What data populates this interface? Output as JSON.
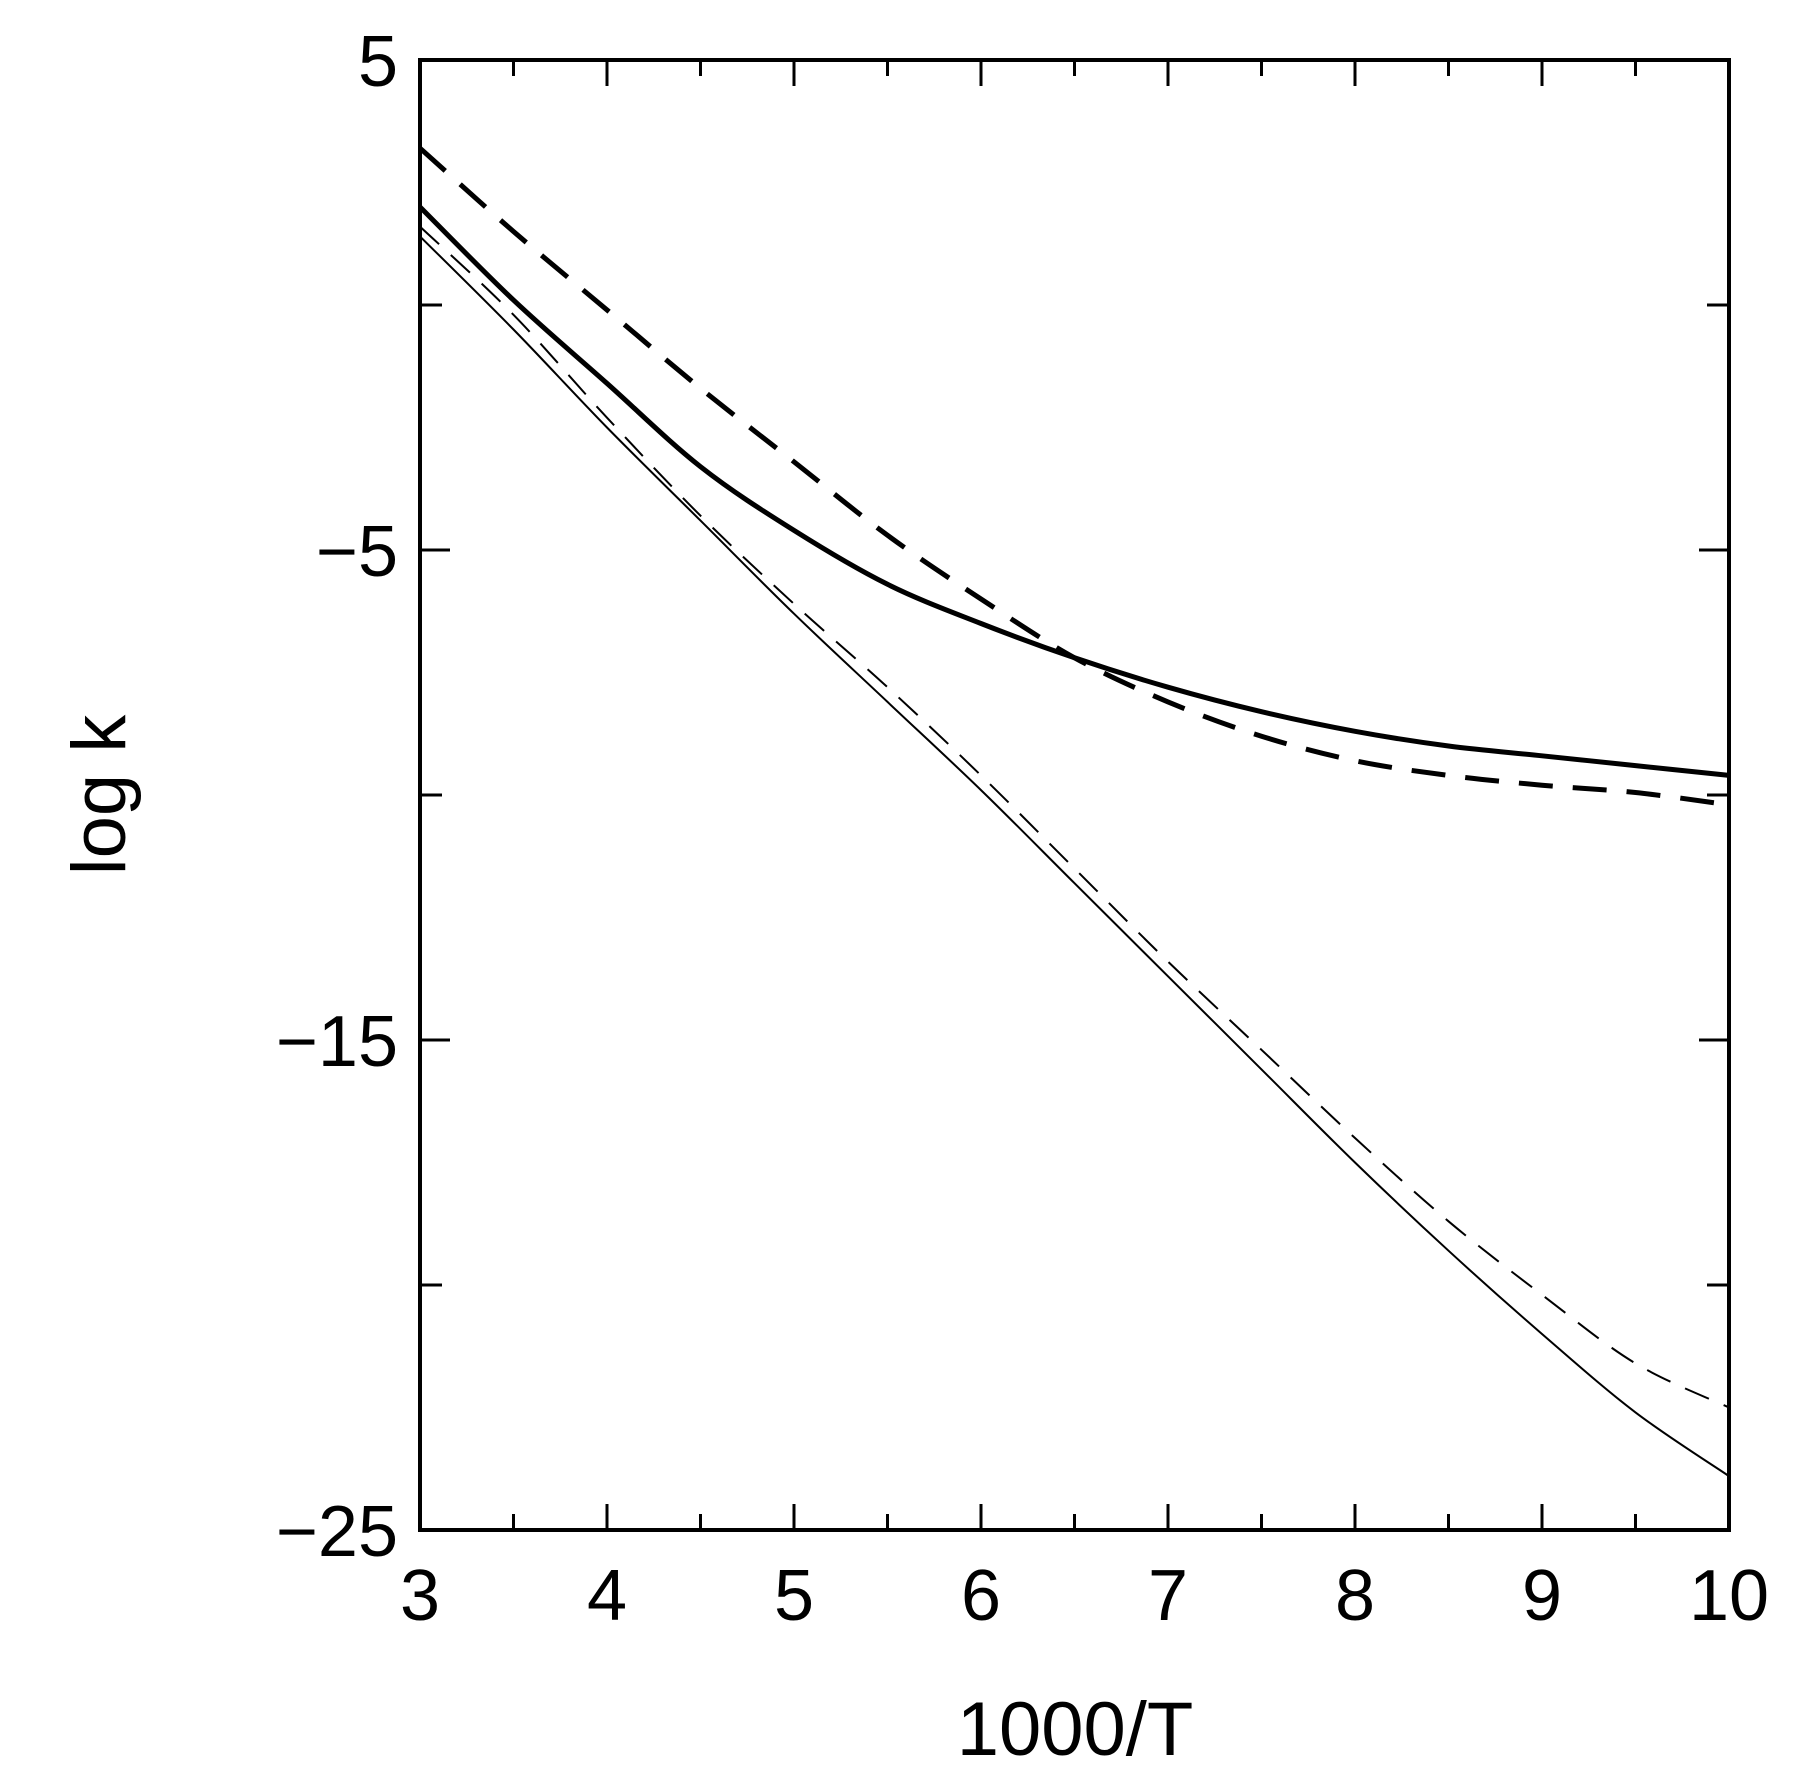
{
  "chart_data": {
    "type": "line",
    "title": "",
    "xlabel": "1000/T",
    "ylabel": "log k",
    "xlim": [
      3,
      10
    ],
    "ylim": [
      -25,
      5
    ],
    "x_ticks": [
      3,
      4,
      5,
      6,
      7,
      8,
      9,
      10
    ],
    "x_tick_labels": [
      "3",
      "4",
      "5",
      "6",
      "7",
      "8",
      "9",
      "10"
    ],
    "y_ticks": [
      5,
      -5,
      -15,
      -25
    ],
    "y_tick_labels": [
      "5",
      "−5",
      "−15",
      "−25"
    ],
    "grid": false,
    "legend": "none",
    "series": [
      {
        "style": "thick-dashed",
        "x": [
          3.0,
          3.5,
          4.0,
          4.5,
          5.0,
          5.5,
          6.0,
          6.5,
          7.0,
          7.5,
          8.0,
          8.5,
          9.0,
          9.5,
          10.0
        ],
        "y": [
          3.2,
          1.5,
          -0.1,
          -1.7,
          -3.2,
          -4.7,
          -6.0,
          -7.2,
          -8.1,
          -8.8,
          -9.3,
          -9.6,
          -9.8,
          -9.95,
          -10.2
        ]
      },
      {
        "style": "thick-solid",
        "x": [
          3.0,
          3.5,
          4.0,
          4.5,
          5.0,
          5.5,
          6.0,
          6.5,
          7.0,
          7.5,
          8.0,
          8.5,
          9.0,
          9.5,
          10.0
        ],
        "y": [
          2.0,
          0.1,
          -1.6,
          -3.3,
          -4.6,
          -5.7,
          -6.5,
          -7.2,
          -7.8,
          -8.3,
          -8.7,
          -9.0,
          -9.2,
          -9.4,
          -9.6
        ]
      },
      {
        "style": "thin-dashed",
        "x": [
          3.0,
          3.5,
          4.0,
          4.5,
          5.0,
          5.5,
          6.0,
          6.5,
          7.0,
          7.5,
          8.0,
          8.5,
          9.0,
          9.5,
          10.0
        ],
        "y": [
          1.6,
          -0.2,
          -2.3,
          -4.3,
          -6.1,
          -7.8,
          -9.6,
          -11.5,
          -13.4,
          -15.2,
          -17.0,
          -18.7,
          -20.2,
          -21.6,
          -22.5
        ]
      },
      {
        "style": "thin-solid",
        "x": [
          3.0,
          3.5,
          4.0,
          4.5,
          5.0,
          5.5,
          6.0,
          6.5,
          7.0,
          7.5,
          8.0,
          8.5,
          9.0,
          9.5,
          10.0
        ],
        "y": [
          1.4,
          -0.5,
          -2.5,
          -4.4,
          -6.3,
          -8.1,
          -9.9,
          -11.8,
          -13.7,
          -15.6,
          -17.5,
          -19.3,
          -21.0,
          -22.6,
          -23.9
        ]
      }
    ]
  }
}
